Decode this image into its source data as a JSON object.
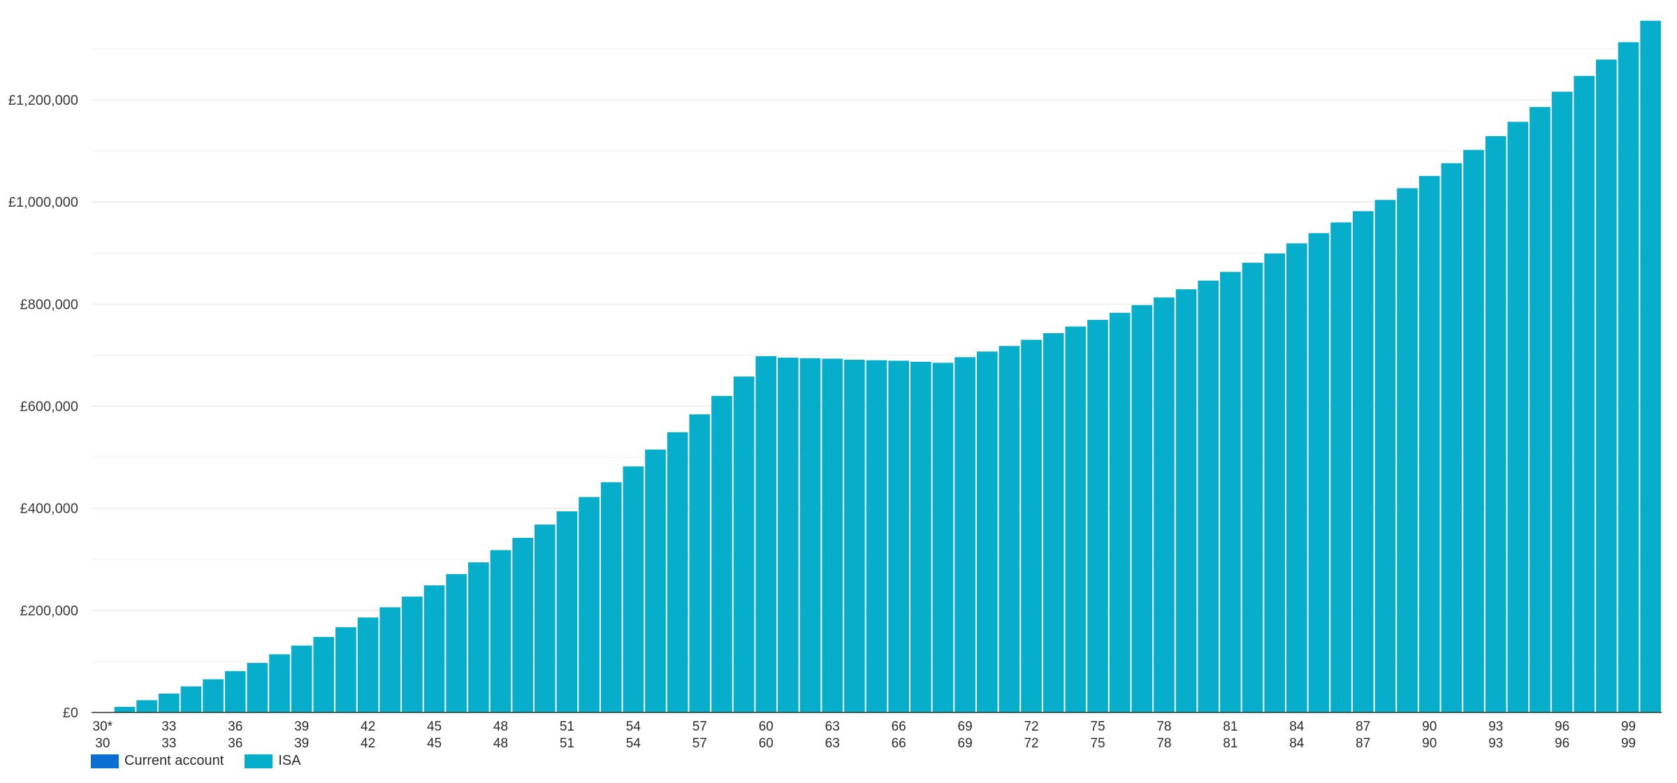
{
  "chart_data": {
    "type": "bar",
    "stacked": true,
    "categories": [
      "30*",
      "31",
      "32",
      "33",
      "34",
      "35",
      "36",
      "37",
      "38",
      "39",
      "40",
      "41",
      "42",
      "43",
      "44",
      "45",
      "46",
      "47",
      "48",
      "49",
      "50",
      "51",
      "52",
      "53",
      "54",
      "55",
      "56",
      "57",
      "58",
      "59",
      "60",
      "61",
      "62",
      "63",
      "64",
      "65",
      "66",
      "67",
      "68",
      "69",
      "70",
      "71",
      "72",
      "73",
      "74",
      "75",
      "76",
      "77",
      "78",
      "79",
      "80",
      "81",
      "82",
      "83",
      "84",
      "85",
      "86",
      "87",
      "88",
      "89",
      "90",
      "91",
      "92",
      "93",
      "94",
      "95",
      "96",
      "97",
      "98",
      "99",
      "100"
    ],
    "x_tick_labels_row1": [
      "30*",
      "33",
      "36",
      "39",
      "42",
      "45",
      "48",
      "51",
      "54",
      "57",
      "60",
      "63",
      "66",
      "69",
      "72",
      "75",
      "78",
      "81",
      "84",
      "87",
      "90",
      "93",
      "96",
      "99"
    ],
    "x_tick_labels_row2": [
      "30",
      "33",
      "36",
      "39",
      "42",
      "45",
      "48",
      "51",
      "54",
      "57",
      "60",
      "63",
      "66",
      "69",
      "72",
      "75",
      "78",
      "81",
      "84",
      "87",
      "90",
      "93",
      "96",
      "99"
    ],
    "y_tick_labels": [
      "£0",
      "£200,000",
      "£400,000",
      "£600,000",
      "£800,000",
      "£1,000,000",
      "£1,200,000"
    ],
    "ylim": [
      0,
      1300000
    ],
    "grid": true,
    "legend_position": "bottom-left",
    "series": [
      {
        "name": "Current account",
        "color": "#0a6fd1",
        "values": [
          0,
          0,
          0,
          0,
          0,
          0,
          0,
          0,
          0,
          0,
          0,
          0,
          0,
          0,
          0,
          0,
          0,
          0,
          0,
          0,
          0,
          0,
          0,
          0,
          0,
          0,
          0,
          0,
          0,
          0,
          0,
          0,
          0,
          0,
          0,
          0,
          0,
          0,
          0,
          0,
          0,
          0,
          0,
          0,
          0,
          0,
          0,
          0,
          0,
          0,
          0,
          0,
          0,
          0,
          0,
          0,
          0,
          0,
          0,
          0,
          0,
          0,
          0,
          0,
          0,
          0,
          0,
          0,
          0,
          0,
          0
        ]
      },
      {
        "name": "ISA",
        "color": "#07aecb",
        "values": [
          0,
          11000,
          24000,
          37000,
          51000,
          65000,
          81000,
          97000,
          114000,
          131000,
          148000,
          167000,
          186000,
          206000,
          227000,
          249000,
          271000,
          294000,
          318000,
          342000,
          368000,
          394000,
          422000,
          451000,
          482000,
          515000,
          549000,
          584000,
          620000,
          658000,
          698000,
          695000,
          694000,
          693000,
          691000,
          690000,
          689000,
          687000,
          685000,
          696000,
          707000,
          718000,
          730000,
          743000,
          756000,
          769000,
          783000,
          798000,
          813000,
          829000,
          846000,
          863000,
          881000,
          899000,
          919000,
          939000,
          960000,
          982000,
          1004000,
          1027000,
          1051000,
          1076000,
          1102000,
          1129000,
          1157000,
          1186000,
          1216000,
          1247000,
          1279000,
          1313000,
          1355000
        ]
      }
    ]
  }
}
